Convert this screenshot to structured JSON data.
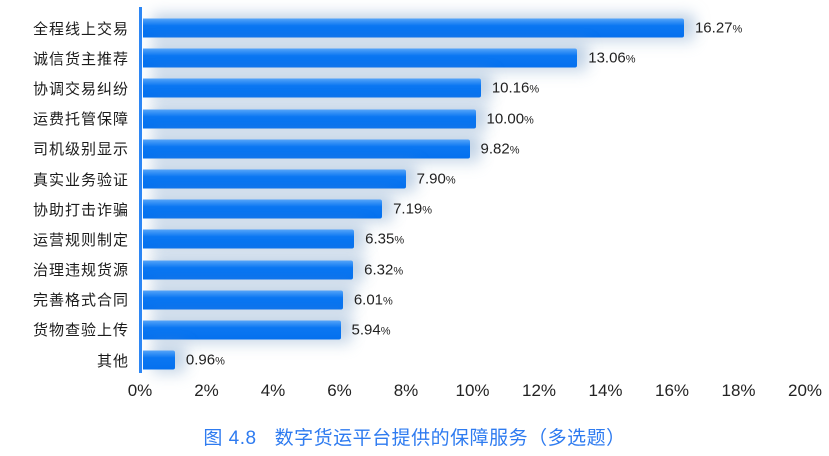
{
  "accent_color": "#0b77f2",
  "axis_color": "#2c86f4",
  "title_color": "#2e7bf0",
  "chart_data": {
    "type": "bar",
    "orientation": "horizontal",
    "title": "图 4.8　数字货运平台提供的保障服务（多选题）",
    "categories": [
      "全程线上交易",
      "诚信货主推荐",
      "协调交易纠纷",
      "运费托管保障",
      "司机级别显示",
      "真实业务验证",
      "协助打击诈骗",
      "运营规则制定",
      "治理违规货源",
      "完善格式合同",
      "货物查验上传",
      "其他"
    ],
    "values": [
      16.27,
      13.06,
      10.16,
      10.0,
      9.82,
      7.9,
      7.19,
      6.35,
      6.32,
      6.01,
      5.94,
      0.96
    ],
    "value_labels": [
      "16.27",
      "13.06",
      "10.16",
      "10.00",
      "9.82",
      "7.90",
      "7.19",
      "6.35",
      "6.32",
      "6.01",
      "5.94",
      "0.96"
    ],
    "unit": "%",
    "xlim": [
      0,
      20
    ],
    "x_tick_labels": [
      "0%",
      "2%",
      "4%",
      "6%",
      "8%",
      "10%",
      "12%",
      "14%",
      "16%",
      "18%",
      "20%"
    ],
    "x_tick_values": [
      0,
      2,
      4,
      6,
      8,
      10,
      12,
      14,
      16,
      18,
      20
    ],
    "grid": false,
    "legend": "none",
    "bar_color": "#0b77f2"
  },
  "caption": {
    "prefix": "图 4.8",
    "text": "数字货运平台提供的保障服务（多选题）"
  }
}
